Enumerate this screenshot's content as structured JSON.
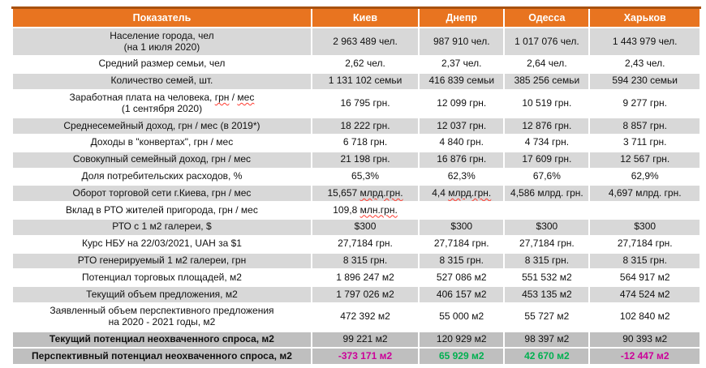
{
  "colors": {
    "header_bg": "#e87420",
    "header_border_top": "#a8510f",
    "stripe_gray": "#d8d8d8",
    "stripe_dark": "#bfbfbf",
    "value_negative": "#cc0099",
    "value_positive": "#00b050",
    "spellcheck_red": "#ff3b30"
  },
  "chart_data": {
    "type": "table",
    "title": "",
    "columns": [
      "Показатель",
      "Киев",
      "Днепр",
      "Одесса",
      "Харьков"
    ],
    "rows": [
      {
        "band": "gray",
        "label": "Население города, чел\n(на 1 июля 2020)",
        "values": [
          "2 963 489 чел.",
          "987 910 чел.",
          "1 017 076 чел.",
          "1 443 979 чел."
        ]
      },
      {
        "band": "white",
        "label": "Средний размер семьи, чел",
        "values": [
          "2,62 чел.",
          "2,37 чел.",
          "2,64 чел.",
          "2,43 чел."
        ]
      },
      {
        "band": "gray",
        "label": "Количество семей, шт.",
        "values": [
          "1 131 102 семьи",
          "416 839 семьи",
          "385 256 семьи",
          "594 230 семьи"
        ]
      },
      {
        "band": "white",
        "label": {
          "parts": [
            {
              "t": "Заработная плата на человека, "
            },
            {
              "t": "грн",
              "sq": true
            },
            {
              "t": " / "
            },
            {
              "t": "мес",
              "sq": true
            },
            {
              "br": true
            },
            {
              "t": "(1 сентября 2020)"
            }
          ]
        },
        "values": [
          "16 795 грн.",
          "12 099 грн.",
          "10 519 грн.",
          "9 277 грн."
        ]
      },
      {
        "band": "gray",
        "label": "Среднесемейный доход, грн / мес (в 2019*)",
        "values": [
          "18 222 грн.",
          "12 037 грн.",
          "12 876 грн.",
          "8 857 грн."
        ]
      },
      {
        "band": "white",
        "label": "Доходы в \"конвертах\", грн / мес",
        "values": [
          "6 718 грн.",
          "4 840 грн.",
          "4 734 грн.",
          "3 711 грн."
        ]
      },
      {
        "band": "gray",
        "label": "Совокупный семейный доход, грн / мес",
        "values": [
          "21 198 грн.",
          "16 876 грн.",
          "17 609 грн.",
          "12 567 грн."
        ]
      },
      {
        "band": "white",
        "label": "Доля потребительских расходов, %",
        "values": [
          "65,3%",
          "62,3%",
          "67,6%",
          "62,9%"
        ]
      },
      {
        "band": "gray",
        "label": "Оборот торговой сети г.Киева,  грн / мес",
        "values": [
          {
            "parts": [
              {
                "t": "15,657 "
              },
              {
                "t": "млрд.грн.",
                "sq": true
              }
            ]
          },
          {
            "parts": [
              {
                "t": "4,4 "
              },
              {
                "t": "млрд.грн.",
                "sq": true
              }
            ]
          },
          "4,586 млрд. грн.",
          "4,697 млрд. грн."
        ]
      },
      {
        "band": "white",
        "label": "Вклад в РТО жителей пригорода, грн / мес",
        "values": [
          {
            "parts": [
              {
                "t": "109,8 "
              },
              {
                "t": "млн.грн.",
                "sq": true
              }
            ]
          },
          "",
          "",
          ""
        ]
      },
      {
        "band": "gray",
        "label": "РТО с 1 м2 галереи, $",
        "values": [
          "$300",
          "$300",
          "$300",
          "$300"
        ]
      },
      {
        "band": "white",
        "label": "Курс НБУ на 22/03/2021, UAH за $1",
        "values": [
          "27,7184 грн.",
          "27,7184 грн.",
          "27,7184 грн.",
          "27,7184 грн."
        ]
      },
      {
        "band": "gray",
        "label": "РТО генерируемый 1 м2 галереи, грн",
        "values": [
          "8 315 грн.",
          "8 315 грн.",
          "8 315 грн.",
          "8 315 грн."
        ]
      },
      {
        "band": "white",
        "label": "Потенциал торговых площадей, м2",
        "values": [
          "1 896 247 м2",
          "527 086 м2",
          "551 532 м2",
          "564 917 м2"
        ]
      },
      {
        "band": "gray",
        "label": "Текущий объем предложения, м2",
        "values": [
          "1 797 026 м2",
          "406 157 м2",
          "453 135 м2",
          "474 524 м2"
        ]
      },
      {
        "band": "white",
        "label": "Заявленный объем перспективного предложения\nна 2020 - 2021 годы, м2",
        "values": [
          "472 392 м2",
          "55 000 м2",
          "55 727 м2",
          "102 840 м2"
        ]
      },
      {
        "band": "dark",
        "bold": true,
        "label": "Текущий потенциал неохваченного спроса, м2",
        "values": [
          "99 221 м2",
          "120 929 м2",
          "98 397 м2",
          "90 393 м2"
        ]
      },
      {
        "band": "dark",
        "bold": true,
        "label": "Перспективный потенциал неохваченного спроса, м2",
        "values": [
          {
            "parts": [
              {
                "t": "-373 171 м2",
                "color": "negative"
              }
            ]
          },
          {
            "parts": [
              {
                "t": "65 929 м2",
                "color": "positive"
              }
            ]
          },
          {
            "parts": [
              {
                "t": "42 670 м2",
                "color": "positive"
              }
            ]
          },
          {
            "parts": [
              {
                "t": "-12 447 м2",
                "color": "negative"
              }
            ]
          }
        ]
      }
    ]
  }
}
